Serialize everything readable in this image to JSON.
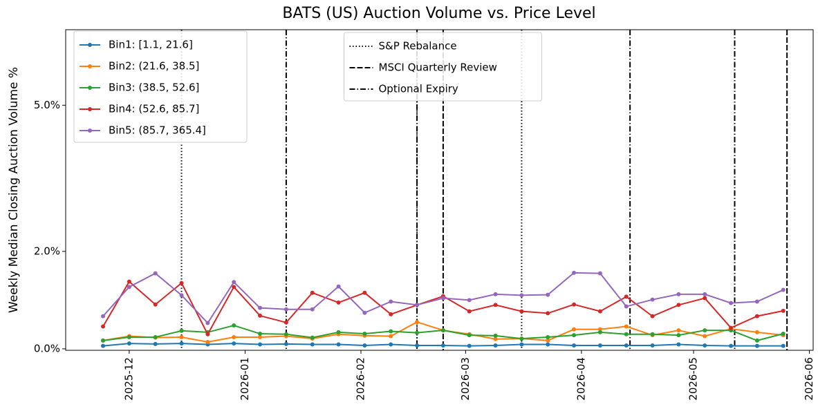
{
  "chart_data": {
    "type": "line",
    "title": "BATS (US) Auction Volume vs. Price Level",
    "y_label": "Weekly Median Closing Auction Volume %",
    "x": [
      "2025-11-24",
      "2025-12-01",
      "2025-12-08",
      "2025-12-15",
      "2025-12-22",
      "2025-12-29",
      "2026-01-05",
      "2026-01-12",
      "2026-01-19",
      "2026-01-26",
      "2026-02-02",
      "2026-02-09",
      "2026-02-16",
      "2026-02-23",
      "2026-03-02",
      "2026-03-09",
      "2026-03-16",
      "2026-03-23",
      "2026-03-30",
      "2026-04-06",
      "2026-04-13",
      "2026-04-20",
      "2026-04-27",
      "2026-05-04",
      "2026-05-11",
      "2026-05-18",
      "2026-05-25"
    ],
    "series": [
      {
        "name": "Bin1: [1.1, 21.6]",
        "color": "#1f77b4",
        "values": [
          0.06,
          0.11,
          0.1,
          0.11,
          0.09,
          0.11,
          0.09,
          0.1,
          0.09,
          0.09,
          0.07,
          0.09,
          0.07,
          0.07,
          0.06,
          0.07,
          0.09,
          0.09,
          0.07,
          0.07,
          0.07,
          0.07,
          0.09,
          0.07,
          0.06,
          0.06,
          0.06
        ]
      },
      {
        "name": "Bin2: (21.6, 38.5]",
        "color": "#ff7f0e",
        "values": [
          0.17,
          0.26,
          0.23,
          0.24,
          0.14,
          0.24,
          0.24,
          0.26,
          0.21,
          0.3,
          0.27,
          0.26,
          0.55,
          0.38,
          0.3,
          0.2,
          0.21,
          0.17,
          0.4,
          0.4,
          0.46,
          0.28,
          0.38,
          0.26,
          0.41,
          0.34,
          0.28
        ]
      },
      {
        "name": "Bin3: (38.5, 52.6]",
        "color": "#2ca02c",
        "values": [
          0.17,
          0.24,
          0.24,
          0.37,
          0.34,
          0.48,
          0.31,
          0.3,
          0.23,
          0.34,
          0.31,
          0.36,
          0.33,
          0.38,
          0.28,
          0.27,
          0.21,
          0.24,
          0.28,
          0.34,
          0.3,
          0.3,
          0.28,
          0.38,
          0.38,
          0.17,
          0.31
        ]
      },
      {
        "name": "Bin4: (52.6, 85.7]",
        "color": "#d62728",
        "values": [
          0.46,
          1.38,
          0.91,
          1.35,
          0.3,
          1.27,
          0.68,
          0.54,
          1.15,
          0.95,
          1.15,
          0.71,
          0.9,
          1.08,
          0.77,
          0.9,
          0.77,
          0.73,
          0.91,
          0.77,
          1.07,
          0.67,
          0.9,
          1.04,
          0.43,
          0.67,
          0.78
        ]
      },
      {
        "name": "Bin5: (85.7, 365.4]",
        "color": "#9467bd",
        "values": [
          0.67,
          1.27,
          1.55,
          1.1,
          0.53,
          1.37,
          0.84,
          0.81,
          0.81,
          1.28,
          0.74,
          0.97,
          0.9,
          1.04,
          1.0,
          1.12,
          1.1,
          1.11,
          1.56,
          1.55,
          0.87,
          1.01,
          1.12,
          1.12,
          0.94,
          0.97,
          1.21
        ]
      }
    ],
    "events": [
      {
        "name": "S&P Rebalance",
        "style": "dotted",
        "color": "#000000",
        "dates": [
          "2025-12-15",
          "2026-02-16",
          "2026-03-16"
        ]
      },
      {
        "name": "MSCI Quarterly Review",
        "style": "dashed",
        "color": "#000000",
        "dates": [
          "2026-02-23",
          "2026-05-26"
        ]
      },
      {
        "name": "Optional Expiry",
        "style": "dashdot",
        "color": "#000000",
        "dates": [
          "2026-01-12",
          "2026-02-16",
          "2026-04-14",
          "2026-05-12"
        ]
      }
    ],
    "xlim": [
      "2025-11-14",
      "2026-06-02"
    ],
    "xticks": [
      "2025-12",
      "2026-01",
      "2026-02",
      "2026-03",
      "2026-04",
      "2026-05",
      "2026-06"
    ],
    "ylim": [
      -0.03,
      6.55
    ],
    "yticks": [
      {
        "value": 0,
        "label": "0.0%"
      },
      {
        "value": 2,
        "label": "2.0%"
      },
      {
        "value": 5,
        "label": "5.0%"
      }
    ],
    "legend": "upper left",
    "events_legend": "upper center"
  }
}
